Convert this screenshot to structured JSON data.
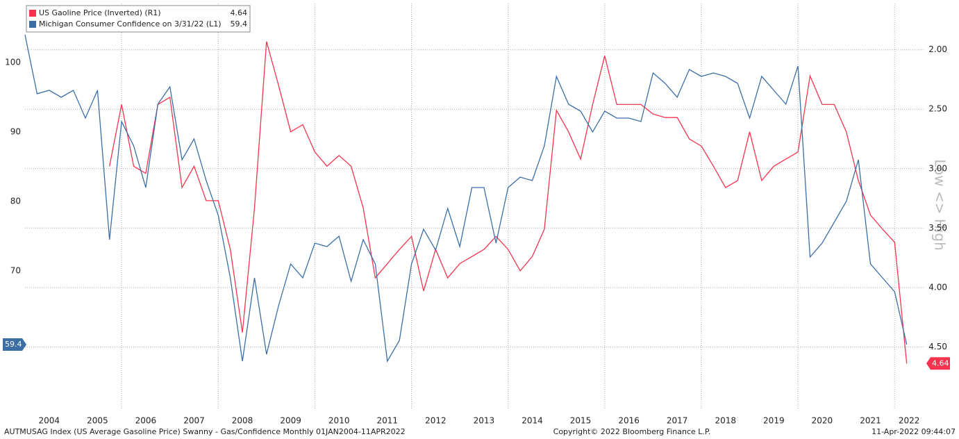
{
  "chart_data": {
    "type": "line",
    "axis_label_y2": "Low <> High",
    "footer_left": "AUTMUSAG Index (US Average Gasoline Price) Swanny - Gas/Confidence  Monthly 01JAN2004-11APR2022",
    "footer_center": "Copyright© 2022 Bloomberg Finance L.P.",
    "footer_right": "11-Apr-2022 09:44:07",
    "x": [
      2004,
      2004.25,
      2004.5,
      2004.75,
      2005,
      2005.25,
      2005.5,
      2005.75,
      2006,
      2006.25,
      2006.5,
      2006.75,
      2007,
      2007.25,
      2007.5,
      2007.75,
      2008,
      2008.25,
      2008.5,
      2008.75,
      2009,
      2009.25,
      2009.5,
      2009.75,
      2010,
      2010.25,
      2010.5,
      2010.75,
      2011,
      2011.25,
      2011.5,
      2011.75,
      2012,
      2012.25,
      2012.5,
      2012.75,
      2013,
      2013.25,
      2013.5,
      2013.75,
      2014,
      2014.25,
      2014.5,
      2014.75,
      2015,
      2015.25,
      2015.5,
      2015.75,
      2016,
      2016.25,
      2016.5,
      2016.75,
      2017,
      2017.25,
      2017.5,
      2017.75,
      2018,
      2018.25,
      2018.5,
      2018.75,
      2019,
      2019.25,
      2019.5,
      2019.75,
      2020,
      2020.25,
      2020.5,
      2020.75,
      2021,
      2021.25,
      2021.5,
      2021.75,
      2022,
      2022.25
    ],
    "series": [
      {
        "name": "US Gaoline Price (Inverted) (R1)",
        "color": "#f5334f",
        "axis": "y2",
        "values": [
          null,
          null,
          null,
          null,
          null,
          null,
          null,
          2.98,
          2.46,
          2.98,
          3.04,
          2.46,
          2.4,
          3.16,
          2.98,
          3.27,
          3.27,
          3.68,
          4.38,
          3.33,
          1.93,
          2.3,
          2.69,
          2.63,
          2.86,
          2.98,
          2.89,
          2.98,
          3.33,
          3.92,
          3.8,
          3.68,
          3.57,
          4.03,
          3.68,
          3.92,
          3.8,
          3.74,
          3.68,
          3.57,
          3.68,
          3.86,
          3.74,
          3.51,
          2.51,
          2.69,
          2.92,
          2.46,
          2.05,
          2.46,
          2.46,
          2.46,
          2.54,
          2.57,
          2.57,
          2.75,
          2.81,
          2.98,
          3.16,
          3.1,
          2.69,
          3.1,
          2.98,
          2.92,
          2.86,
          2.22,
          2.46,
          2.46,
          2.69,
          3.1,
          3.39,
          3.51,
          3.62,
          4.64
        ]
      },
      {
        "name": "Michigan Consumer Confidence on 3/31/22 (L1)",
        "color": "#3a6ea5",
        "values": [
          104,
          95.5,
          96,
          95,
          96,
          92,
          96,
          74.5,
          91.5,
          88,
          82,
          94,
          96.5,
          86,
          89,
          83,
          78,
          69,
          57,
          69,
          58,
          65,
          71,
          69,
          74,
          73.5,
          75,
          68.5,
          74.5,
          71,
          57,
          60,
          71,
          76,
          73,
          79,
          73.5,
          82,
          82,
          74,
          82,
          83.5,
          83,
          88,
          98,
          94,
          93,
          90,
          93,
          92,
          92,
          91.5,
          98.5,
          97,
          95,
          99,
          98,
          98.5,
          98,
          97,
          92,
          98,
          96,
          94,
          99.5,
          72,
          74,
          77,
          80,
          86,
          71,
          69,
          67,
          59.4
        ]
      }
    ],
    "xlim": [
      2004,
      2022.6
    ],
    "xticks": [
      2004,
      2005,
      2006,
      2007,
      2008,
      2009,
      2010,
      2011,
      2012,
      2013,
      2014,
      2015,
      2016,
      2017,
      2018,
      2019,
      2020,
      2021,
      2022
    ],
    "ylim": [
      50,
      108.5
    ],
    "yticks": [
      70,
      80,
      90,
      100
    ],
    "y2lim": [
      5.03,
      1.61
    ],
    "y2ticks": [
      {
        "value": 2,
        "label": "2.00"
      },
      {
        "value": 2.5,
        "label": "2.50"
      },
      {
        "value": 3,
        "label": "3.00"
      },
      {
        "value": 3.5,
        "label": "3.50"
      },
      {
        "value": 4,
        "label": "4.00"
      },
      {
        "value": 4.5,
        "label": "4.50"
      }
    ],
    "grid": true
  }
}
